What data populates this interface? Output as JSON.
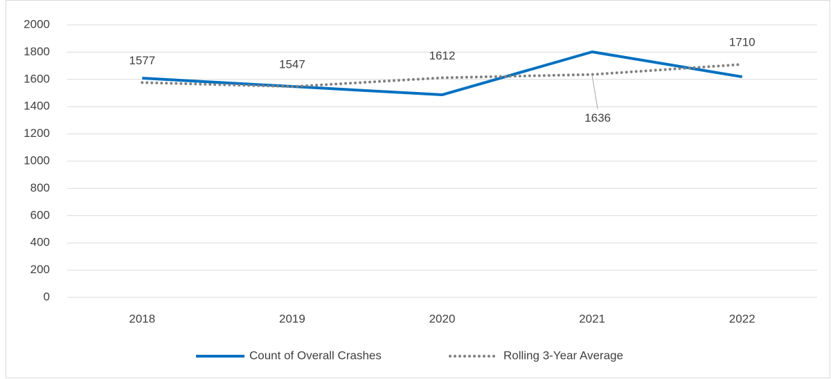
{
  "chart_data": {
    "type": "line",
    "categories": [
      "2018",
      "2019",
      "2020",
      "2021",
      "2022"
    ],
    "series": [
      {
        "name": "Count of Overall Crashes",
        "color": "#0070c0",
        "style": "solid",
        "values": [
          1609,
          1548,
          1487,
          1802,
          1619
        ]
      },
      {
        "name": "Rolling 3-Year Average",
        "color": "#808080",
        "style": "dotted",
        "values": [
          1577,
          1547,
          1612,
          1636,
          1710
        ],
        "data_labels": true
      }
    ],
    "ylim": [
      0,
      2000
    ],
    "yticks": [
      0,
      200,
      400,
      600,
      800,
      1000,
      1200,
      1400,
      1600,
      1800,
      2000
    ],
    "grid": true,
    "legend": "bottom"
  }
}
